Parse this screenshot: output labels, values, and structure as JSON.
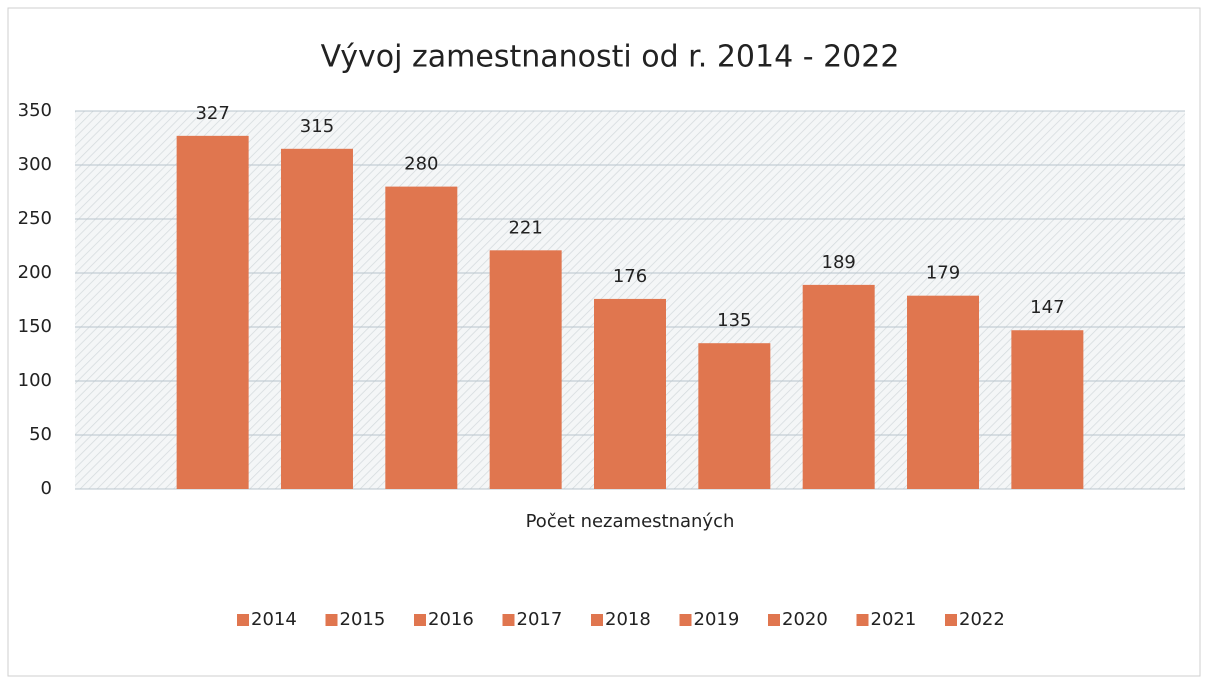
{
  "chart_data": {
    "type": "bar",
    "title": "Vývoj zamestnanosti od r. 2014 - 2022",
    "categories": [
      "Počet nezamestnaných"
    ],
    "series": [
      {
        "name": "2014",
        "color": "#e0764f",
        "values": [
          327
        ]
      },
      {
        "name": "2015",
        "color": "#e0764f",
        "values": [
          315
        ]
      },
      {
        "name": "2016",
        "color": "#e0764f",
        "values": [
          280
        ]
      },
      {
        "name": "2017",
        "color": "#e0764f",
        "values": [
          221
        ]
      },
      {
        "name": "2018",
        "color": "#e0764f",
        "values": [
          176
        ]
      },
      {
        "name": "2019",
        "color": "#e0764f",
        "values": [
          135
        ]
      },
      {
        "name": "2020",
        "color": "#e0764f",
        "values": [
          189
        ]
      },
      {
        "name": "2021",
        "color": "#e0764f",
        "values": [
          179
        ]
      },
      {
        "name": "2022",
        "color": "#e0764f",
        "values": [
          147
        ]
      }
    ],
    "ylim": [
      0,
      350
    ],
    "yticks": [
      0,
      50,
      100,
      150,
      200,
      250,
      300,
      350
    ],
    "grid": true,
    "legend": "bottom"
  }
}
